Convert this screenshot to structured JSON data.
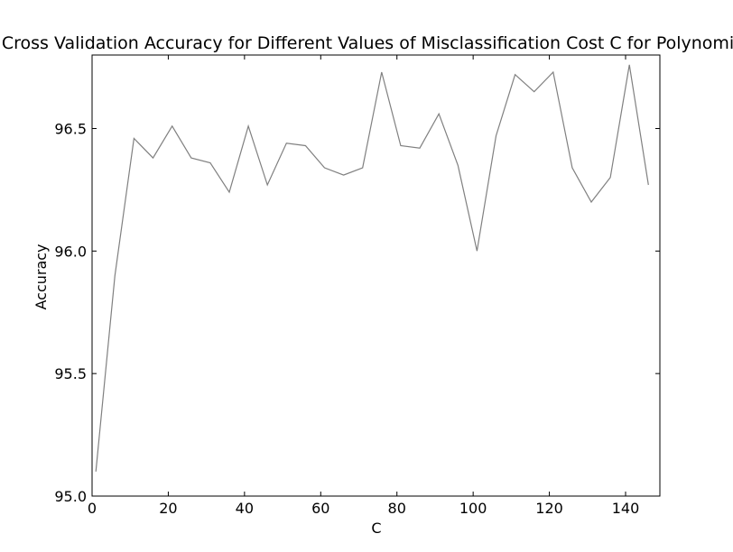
{
  "chart_data": {
    "type": "line",
    "title": "Cross Validation Accuracy for Different Values of Misclassification Cost C for Polynomial",
    "xlabel": "C",
    "ylabel": "Accuracy",
    "xlim": [
      0,
      149
    ],
    "ylim": [
      95.0,
      96.8
    ],
    "xticks": [
      0,
      20,
      40,
      60,
      80,
      100,
      120,
      140
    ],
    "yticks": [
      95.0,
      95.5,
      96.0,
      96.5
    ],
    "ytick_labels": [
      "95.0",
      "95.5",
      "96.0",
      "96.5"
    ],
    "grid": false,
    "line_color": "#808080",
    "series": [
      {
        "x": [
          1,
          6,
          11,
          16,
          21,
          26,
          31,
          36,
          41,
          46,
          51,
          56,
          61,
          66,
          71,
          76,
          81,
          86,
          91,
          96,
          101,
          106,
          111,
          116,
          121,
          126,
          131,
          136,
          141,
          146
        ],
        "values": [
          95.1,
          95.9,
          96.46,
          96.38,
          96.51,
          96.38,
          96.36,
          96.24,
          96.51,
          96.27,
          96.44,
          96.43,
          96.34,
          96.31,
          96.34,
          96.73,
          96.43,
          96.42,
          96.56,
          96.35,
          96.0,
          96.47,
          96.72,
          96.65,
          96.73,
          96.34,
          96.2,
          96.3,
          96.76,
          96.27
        ]
      }
    ]
  }
}
